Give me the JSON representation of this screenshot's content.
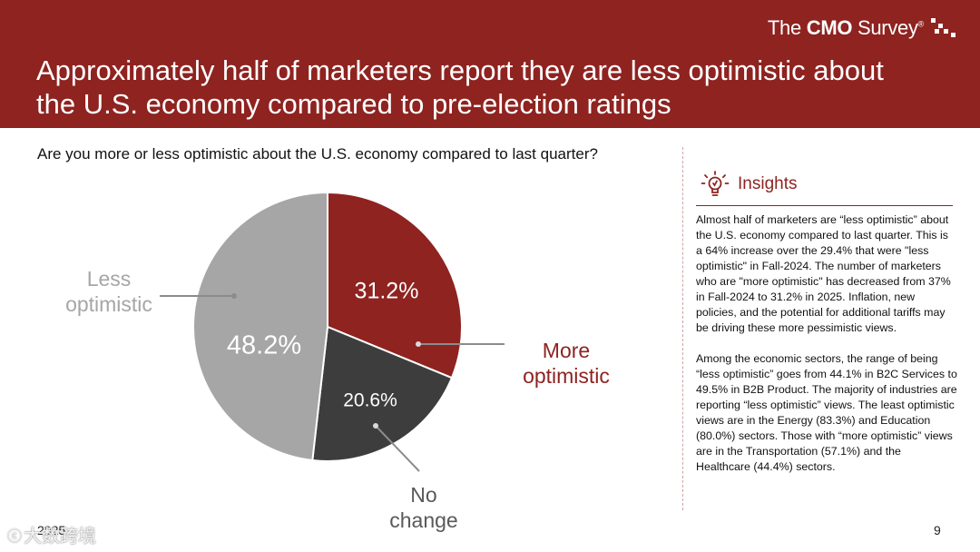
{
  "header": {
    "brand_prefix": "The ",
    "brand_bold": "CMO",
    "brand_suffix": " Survey",
    "brand_reg": "®",
    "title_line1": "Approximately half of marketers report they are less optimistic about",
    "title_line2": "the U.S. economy compared to pre-election ratings"
  },
  "colors": {
    "header_bg": "#8e2320",
    "more_optimistic": "#8e2320",
    "no_change": "#3d3d3d",
    "less_optimistic": "#a6a6a6",
    "label_gray": "#999999"
  },
  "chart_data": {
    "type": "pie",
    "title": "Are you more or less optimistic about the U.S. economy compared to last quarter?",
    "slices": [
      {
        "name": "More optimistic",
        "label_lines": [
          "More",
          "optimistic"
        ],
        "value": 31.2,
        "display": "31.2%",
        "color": "#8e2320",
        "label_color": "#8e2320"
      },
      {
        "name": "No change",
        "label_lines": [
          "No",
          "change"
        ],
        "value": 20.6,
        "display": "20.6%",
        "color": "#3d3d3d",
        "label_color": "#595959"
      },
      {
        "name": "Less optimistic",
        "label_lines": [
          "Less",
          "optimistic"
        ],
        "value": 48.2,
        "display": "48.2%",
        "color": "#a6a6a6",
        "label_color": "#a6a6a6"
      }
    ],
    "start_angle_deg": 0,
    "direction": "clockwise"
  },
  "insights": {
    "icon": "lightbulb-icon",
    "heading": "Insights",
    "paragraph1": "Almost half of marketers are “less optimistic” about the U.S. economy compared to last quarter. This is a 64% increase over the 29.4% that were \"less optimistic\" in Fall-2024. The number of marketers who are \"more optimistic\" has decreased from 37% in Fall-2024 to 31.2% in 2025. Inflation, new policies, and the potential for additional tariffs may be driving these more pessimistic views.",
    "paragraph2": "Among the economic sectors, the range of being “less optimistic” goes from 44.1% in B2C Services to 49.5% in B2B Product. The majority of industries are reporting “less optimistic” views. The least optimistic views are in the Energy (83.3%) and Education (80.0%) sectors. Those with “more optimistic” views are in the Transportation (57.1%) and the Healthcare (44.4%) sectors."
  },
  "footer": {
    "year": "2025",
    "page_number": "9",
    "watermark": "大数跨境"
  }
}
